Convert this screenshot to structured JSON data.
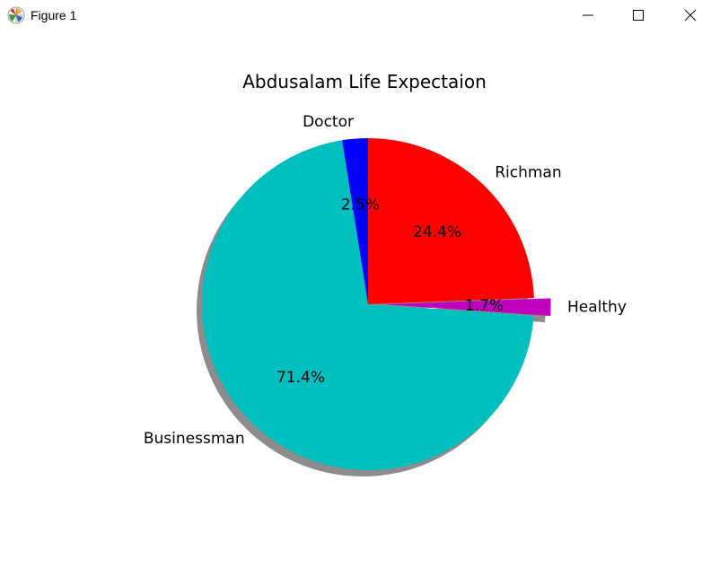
{
  "window": {
    "title": "Figure 1",
    "icon": "matplotlib-logo-icon",
    "controls": {
      "minimize": "minimize-icon",
      "maximize": "maximize-icon",
      "close": "close-icon"
    }
  },
  "chart_data": {
    "type": "pie",
    "title": "Abdusalam  Life Expectaion",
    "start_angle_deg": 90,
    "direction": "counterclockwise",
    "shadow": true,
    "slices": [
      {
        "label": "Doctor",
        "value": 2.5,
        "pct_label": "2.5%",
        "color": "#0000ff",
        "explode": 0
      },
      {
        "label": "Businessman",
        "value": 71.4,
        "pct_label": "71.4%",
        "color": "#00bfbf",
        "explode": 0
      },
      {
        "label": "Healthy",
        "value": 1.7,
        "pct_label": "1.7%",
        "color": "#bf00bf",
        "explode": 0.1
      },
      {
        "label": "Richman",
        "value": 24.4,
        "pct_label": "24.4%",
        "color": "#ff0000",
        "explode": 0
      }
    ]
  }
}
